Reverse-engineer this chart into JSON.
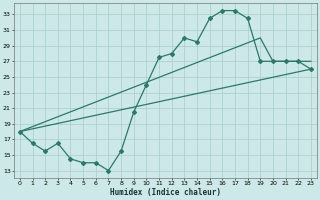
{
  "xlabel": "Humidex (Indice chaleur)",
  "bg_color": "#cce8e8",
  "grid_color": "#aacccc",
  "line_color": "#2a7a6a",
  "xlim": [
    -0.5,
    23.5
  ],
  "ylim": [
    12,
    34.5
  ],
  "yticks": [
    13,
    15,
    17,
    19,
    21,
    23,
    25,
    27,
    29,
    31,
    33
  ],
  "xticks": [
    0,
    1,
    2,
    3,
    4,
    5,
    6,
    7,
    8,
    9,
    10,
    11,
    12,
    13,
    14,
    15,
    16,
    17,
    18,
    19,
    20,
    21,
    22,
    23
  ],
  "line1_x": [
    0,
    1,
    2,
    3,
    4,
    5,
    6,
    7,
    8,
    9,
    10,
    11,
    12,
    13,
    14,
    15,
    16,
    17,
    18,
    19,
    20,
    21,
    22,
    23
  ],
  "line1_y": [
    18,
    16.5,
    15.5,
    16.5,
    14.5,
    14,
    14,
    13,
    15.5,
    20.5,
    24,
    27.5,
    28,
    30,
    29.5,
    32.5,
    33.5,
    33.5,
    32.5,
    27,
    27,
    27,
    27,
    26
  ],
  "line2_x": [
    0,
    23
  ],
  "line2_y": [
    18,
    26
  ],
  "line3_x": [
    0,
    19,
    20,
    21,
    22,
    23
  ],
  "line3_y": [
    18,
    30,
    27,
    27,
    27,
    27
  ]
}
